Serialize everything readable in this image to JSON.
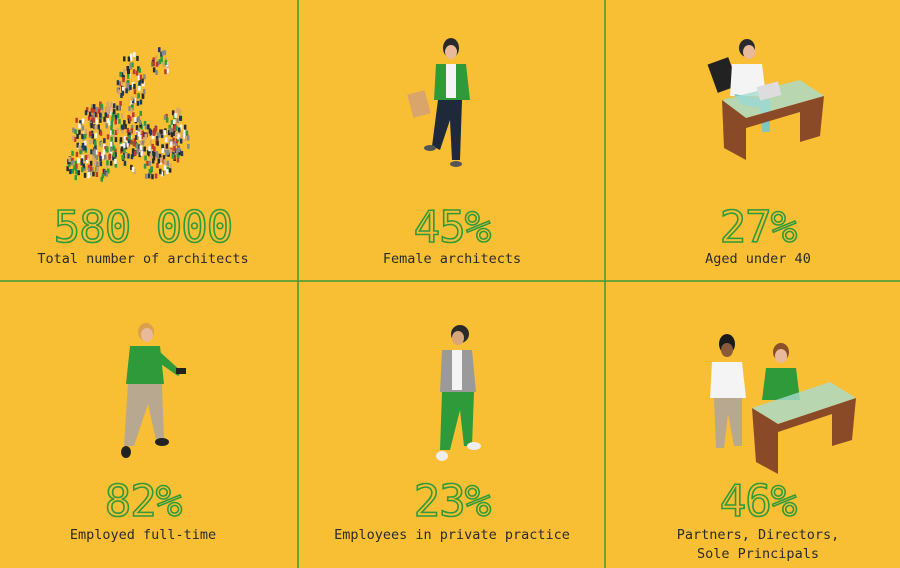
{
  "cells": [
    {
      "stat": "580 000",
      "label": [
        "Total number of architects"
      ]
    },
    {
      "stat": "45%",
      "label": [
        "Female architects"
      ]
    },
    {
      "stat": "27%",
      "label": [
        "Aged under 40"
      ]
    },
    {
      "stat": "82%",
      "label": [
        "Employed full-time"
      ]
    },
    {
      "stat": "23%",
      "label": [
        "Employees in private practice"
      ]
    },
    {
      "stat": "46%",
      "label": [
        "Partners, Directors,",
        "Sole Principals"
      ]
    }
  ]
}
